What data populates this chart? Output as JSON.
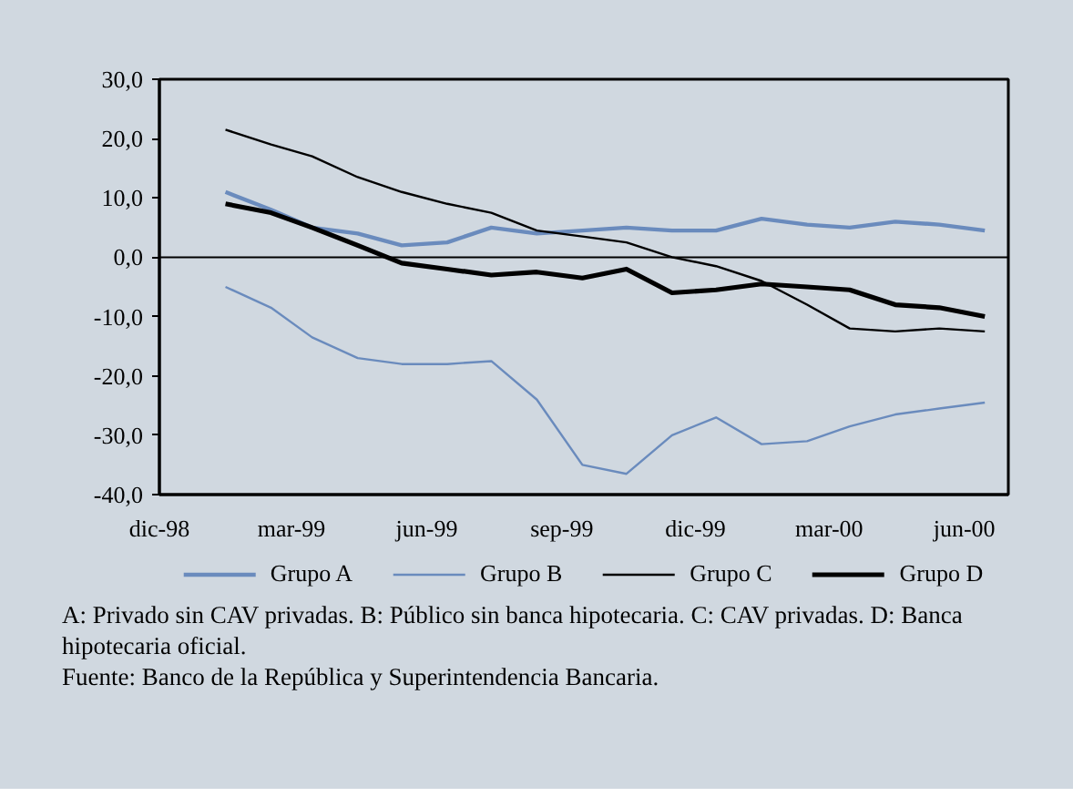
{
  "chart_data": {
    "type": "line",
    "x": [
      "1999-01-15",
      "1999-02-15",
      "1999-03-15",
      "1999-04-15",
      "1999-05-15",
      "1999-06-15",
      "1999-07-15",
      "1999-08-15",
      "1999-09-15",
      "1999-10-15",
      "1999-11-15",
      "1999-12-15",
      "2000-01-15",
      "2000-02-15",
      "2000-03-15",
      "2000-04-15",
      "2000-05-15",
      "2000-06-15"
    ],
    "series": [
      {
        "name": "Grupo A",
        "color": "#6a8bbd",
        "values": [
          11,
          8,
          5,
          4,
          2,
          2.5,
          5,
          4,
          4.5,
          5,
          4.5,
          4.5,
          6.5,
          5.5,
          5,
          6,
          5.5,
          4.5
        ]
      },
      {
        "name": "Grupo B",
        "color": "#6a8bbd",
        "values": [
          -5,
          -8.5,
          -13.5,
          -17,
          -18,
          -18,
          -17.5,
          -24,
          -35,
          -36.5,
          -30,
          -27,
          -31.5,
          -31,
          -28.5,
          -26.5,
          -25.5,
          -24.5
        ]
      },
      {
        "name": "Grupo C",
        "color": "#000000",
        "values": [
          21.5,
          19,
          17,
          13.5,
          11,
          9,
          7.5,
          4.5,
          3.5,
          2.5,
          0,
          -1.5,
          -4,
          -8,
          -12,
          -12.5,
          -12,
          -12.5
        ]
      },
      {
        "name": "Grupo D",
        "color": "#000000",
        "values": [
          9,
          7.5,
          5,
          2,
          -1,
          -2,
          -3,
          -2.5,
          -3.5,
          -2,
          -6,
          -5.5,
          -4.5,
          -5,
          -5.5,
          -8,
          -8.5,
          -10
        ]
      }
    ],
    "xlim": [
      "1998-12-01",
      "2000-07-01"
    ],
    "xticks": [
      {
        "value": "1998-12-01",
        "label": "dic-98"
      },
      {
        "value": "1999-03-01",
        "label": "mar-99"
      },
      {
        "value": "1999-06-01",
        "label": "jun-99"
      },
      {
        "value": "1999-09-01",
        "label": "sep-99"
      },
      {
        "value": "1999-12-01",
        "label": "dic-99"
      },
      {
        "value": "2000-03-01",
        "label": "mar-00"
      },
      {
        "value": "2000-06-01",
        "label": "jun-00"
      }
    ],
    "ylim": [
      -40,
      30
    ],
    "yticks": [
      {
        "value": 30,
        "label": "30,0"
      },
      {
        "value": 20,
        "label": "20,0"
      },
      {
        "value": 10,
        "label": "10,0"
      },
      {
        "value": 0,
        "label": "0,0"
      },
      {
        "value": -10,
        "label": "-10,0"
      },
      {
        "value": -20,
        "label": "-20,0"
      },
      {
        "value": -30,
        "label": "-30,0"
      },
      {
        "value": -40,
        "label": "-40,0"
      }
    ],
    "ref_lines": [
      {
        "axis": "y",
        "value": 0
      }
    ],
    "grid": false,
    "legend": "bottom",
    "marker": "none",
    "line_style": "solid",
    "annotations": [
      "A: Privado sin CAV privadas. B: Público sin banca hipotecaria. C: CAV privadas. D: Banca hipotecaria oficial.",
      "Fuente: Banco de la República y Superintendencia Bancaria."
    ]
  }
}
